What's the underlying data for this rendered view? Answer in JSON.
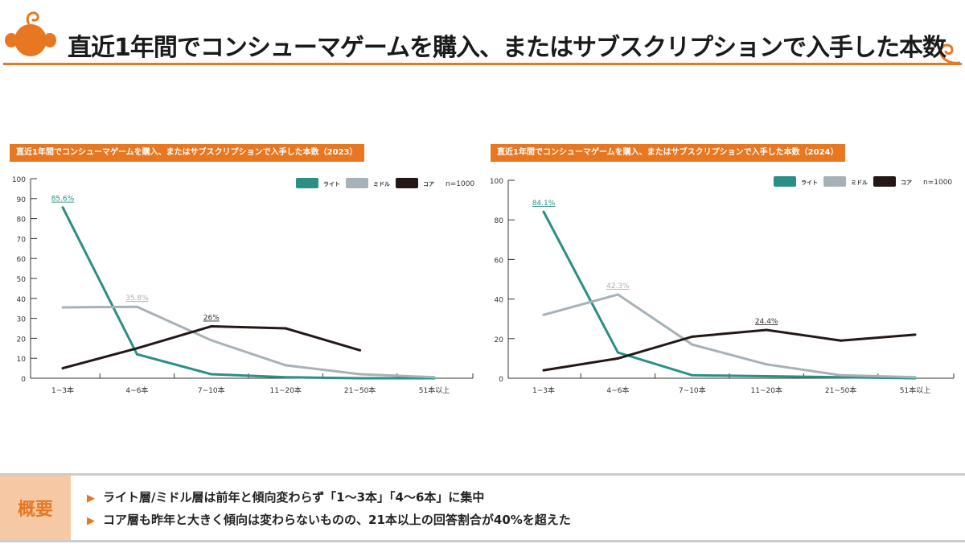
{
  "header": {
    "title": "直近1年間でコンシューマゲームを購入、またはサブスクリプションで入手した本数"
  },
  "colors": {
    "accent": "#e87722",
    "light": "#2a8f85",
    "middle": "#a7b2b8",
    "core": "#231815"
  },
  "chart_data": [
    {
      "type": "line",
      "title": "直近1年間でコンシューマゲームを購入、またはサブスクリプションで入手した本数（2023）",
      "categories": [
        "1~3本",
        "4~6本",
        "7~10本",
        "11~20本",
        "21~50本",
        "51本以上"
      ],
      "ylim": [
        0,
        100
      ],
      "yticks": [
        0,
        10,
        20,
        30,
        40,
        50,
        60,
        70,
        80,
        90,
        100
      ],
      "legend": "top-right",
      "note": "n=1000",
      "series": [
        {
          "name": "ライト",
          "values": [
            85.6,
            12,
            2,
            0.5,
            0,
            0
          ],
          "label": "85.6%",
          "label_index": 0
        },
        {
          "name": "ミドル",
          "values": [
            35.5,
            35.8,
            19,
            6.5,
            2,
            0.5
          ],
          "label": "35.8%",
          "label_index": 1
        },
        {
          "name": "コア",
          "values": [
            5,
            15,
            26,
            25,
            14,
            null
          ],
          "label": "26%",
          "label_index": 2
        }
      ]
    },
    {
      "type": "line",
      "title": "直近1年間でコンシューマゲームを購入、またはサブスクリプションで入手した本数（2024）",
      "categories": [
        "1~3本",
        "4~6本",
        "7~10本",
        "11~20本",
        "21~50本",
        "51本以上"
      ],
      "ylim": [
        0,
        100
      ],
      "yticks": [
        0,
        20,
        40,
        60,
        80,
        100
      ],
      "legend": "top-right",
      "note": "n=1000",
      "series": [
        {
          "name": "ライト",
          "values": [
            84.1,
            13,
            1.5,
            1,
            0.5,
            0
          ],
          "label": "84.1%",
          "label_index": 0
        },
        {
          "name": "ミドル",
          "values": [
            32,
            42.3,
            17,
            7,
            1.5,
            0.5
          ],
          "label": "42.3%",
          "label_index": 1
        },
        {
          "name": "コア",
          "values": [
            4,
            10,
            21,
            24.4,
            19,
            22
          ],
          "label": "24.4%",
          "label_index": 3
        }
      ]
    }
  ],
  "summary": {
    "label": "概要",
    "items": [
      "ライト層/ミドル層は前年と傾向変わらず「1～3本」「4～6本」に集中",
      "コア層も昨年と大きく傾向は変わらないものの、21本以上の回答割合が40%を超えた"
    ],
    "bullet": "▶"
  }
}
